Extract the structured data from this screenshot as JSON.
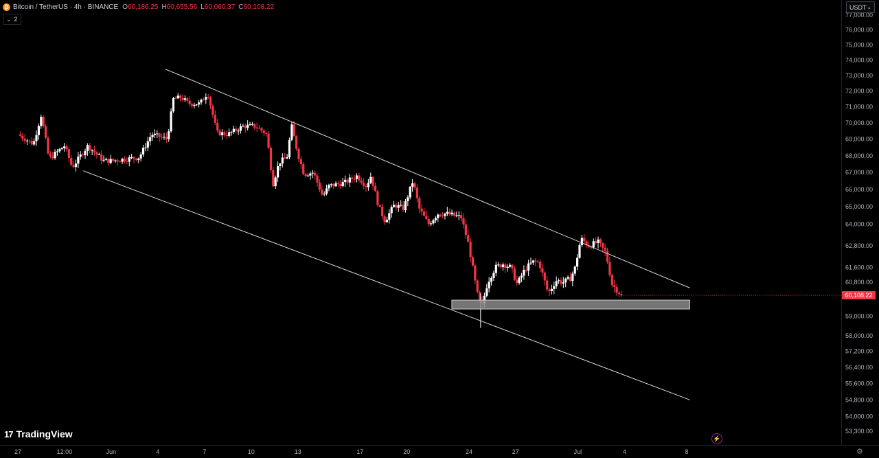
{
  "header": {
    "symbol": "Bitcoin / TetherUS · 4h · BINANCE",
    "logo_icon": "bitcoin-icon",
    "o_label": "O",
    "o_value": "60,186.25",
    "h_label": "H",
    "h_value": "60,655.56",
    "l_label": "L",
    "l_value": "60,060.37",
    "c_label": "C",
    "c_value": "60,108.22",
    "indicator_count": "2"
  },
  "currency": "USDT",
  "current_price_label": "60,108.22",
  "brand": {
    "logo": "17",
    "name": "TradingView"
  },
  "colors": {
    "up": "#ffffff",
    "down": "#f23645",
    "background": "#000000",
    "trendline": "#d9d9d9",
    "zone": "#cfcfcf"
  },
  "chart_data": {
    "type": "candlestick",
    "scale": "log",
    "ylim": [
      52900,
      77700
    ],
    "price_ticks": [
      {
        "v": 77000,
        "label": "77,000.00"
      },
      {
        "v": 76000,
        "label": "76,000.00"
      },
      {
        "v": 75000,
        "label": "75,000.00"
      },
      {
        "v": 74000,
        "label": "74,000.00"
      },
      {
        "v": 73000,
        "label": "73,000.00"
      },
      {
        "v": 72000,
        "label": "72,000.00"
      },
      {
        "v": 71000,
        "label": "71,000.00"
      },
      {
        "v": 70000,
        "label": "70,000.00"
      },
      {
        "v": 69000,
        "label": "69,000.00"
      },
      {
        "v": 68000,
        "label": "68,000.00"
      },
      {
        "v": 67000,
        "label": "67,000.00"
      },
      {
        "v": 66000,
        "label": "66,000.00"
      },
      {
        "v": 65000,
        "label": "65,000.00"
      },
      {
        "v": 64000,
        "label": "64,000.00"
      },
      {
        "v": 62800,
        "label": "62,800.00"
      },
      {
        "v": 61600,
        "label": "61,600.00"
      },
      {
        "v": 60800,
        "label": "60,800.00"
      },
      {
        "v": 59000,
        "label": "59,000.00"
      },
      {
        "v": 58000,
        "label": "58,000.00"
      },
      {
        "v": 57200,
        "label": "57,200.00"
      },
      {
        "v": 56400,
        "label": "56,400.00"
      },
      {
        "v": 55600,
        "label": "55,600.00"
      },
      {
        "v": 54800,
        "label": "54,800.00"
      },
      {
        "v": 54000,
        "label": "54,000.00"
      },
      {
        "v": 53300,
        "label": "53,300.00"
      }
    ],
    "x_ticks": [
      {
        "t": 0,
        "label": "27"
      },
      {
        "t": 3,
        "label": "12:00"
      },
      {
        "t": 6,
        "label": "Jun"
      },
      {
        "t": 9,
        "label": "4"
      },
      {
        "t": 12,
        "label": "7"
      },
      {
        "t": 15,
        "label": "10"
      },
      {
        "t": 18,
        "label": "13"
      },
      {
        "t": 22,
        "label": "17"
      },
      {
        "t": 25,
        "label": "20"
      },
      {
        "t": 29,
        "label": "24"
      },
      {
        "t": 32,
        "label": "27"
      },
      {
        "t": 36,
        "label": "Jul"
      },
      {
        "t": 39,
        "label": "4"
      },
      {
        "t": 43,
        "label": "8"
      }
    ],
    "anchors": [
      [
        0,
        69300
      ],
      [
        1,
        68700
      ],
      [
        1.5,
        70500
      ],
      [
        2,
        67800
      ],
      [
        3,
        68600
      ],
      [
        3.5,
        67300
      ],
      [
        4.5,
        68600
      ],
      [
        5.5,
        67700
      ],
      [
        6,
        67700
      ],
      [
        7,
        67800
      ],
      [
        7.8,
        67900
      ],
      [
        8.6,
        69300
      ],
      [
        9.6,
        69000
      ],
      [
        10,
        71500
      ],
      [
        10.5,
        71600
      ],
      [
        11,
        71200
      ],
      [
        11.7,
        71200
      ],
      [
        12.2,
        71900
      ],
      [
        12.8,
        69400
      ],
      [
        13.5,
        69300
      ],
      [
        14.5,
        69800
      ],
      [
        15.3,
        69800
      ],
      [
        16,
        69300
      ],
      [
        16.4,
        66300
      ],
      [
        16.8,
        67600
      ],
      [
        17.3,
        67900
      ],
      [
        17.6,
        69800
      ],
      [
        18,
        68100
      ],
      [
        18.4,
        66900
      ],
      [
        19,
        67000
      ],
      [
        19.6,
        65600
      ],
      [
        20,
        66200
      ],
      [
        21,
        66400
      ],
      [
        21.8,
        66800
      ],
      [
        22.4,
        66200
      ],
      [
        22.7,
        66800
      ],
      [
        23.2,
        65000
      ],
      [
        23.6,
        64200
      ],
      [
        24.2,
        65100
      ],
      [
        24.8,
        64900
      ],
      [
        25.4,
        66500
      ],
      [
        25.8,
        64900
      ],
      [
        26.4,
        64000
      ],
      [
        27,
        64600
      ],
      [
        27.6,
        64600
      ],
      [
        28.5,
        64400
      ],
      [
        29,
        62800
      ],
      [
        29.5,
        60300
      ],
      [
        29.8,
        59400
      ],
      [
        30.2,
        60800
      ],
      [
        30.7,
        61600
      ],
      [
        31.2,
        61800
      ],
      [
        31.7,
        61600
      ],
      [
        32.1,
        60700
      ],
      [
        32.6,
        61500
      ],
      [
        33.1,
        61900
      ],
      [
        33.5,
        61900
      ],
      [
        34.1,
        60200
      ],
      [
        34.6,
        60900
      ],
      [
        35.1,
        60800
      ],
      [
        35.5,
        61000
      ],
      [
        35.8,
        61500
      ],
      [
        36.2,
        63200
      ],
      [
        36.7,
        62800
      ],
      [
        37.3,
        63000
      ],
      [
        37.8,
        62400
      ],
      [
        38.2,
        60700
      ],
      [
        38.5,
        60400
      ],
      [
        38.8,
        60108
      ]
    ],
    "candle_count": 260,
    "trendlines": [
      {
        "name": "upper",
        "from": [
          9.5,
          73400
        ],
        "to": [
          43.2,
          60500
        ]
      },
      {
        "name": "lower",
        "from": [
          4.2,
          67100
        ],
        "to": [
          43.2,
          54800
        ]
      }
    ],
    "support_zone": {
      "from_t": 27.9,
      "to_t": 43.2,
      "price_low": 59380,
      "price_high": 59850
    },
    "last_price": 60108.22
  }
}
